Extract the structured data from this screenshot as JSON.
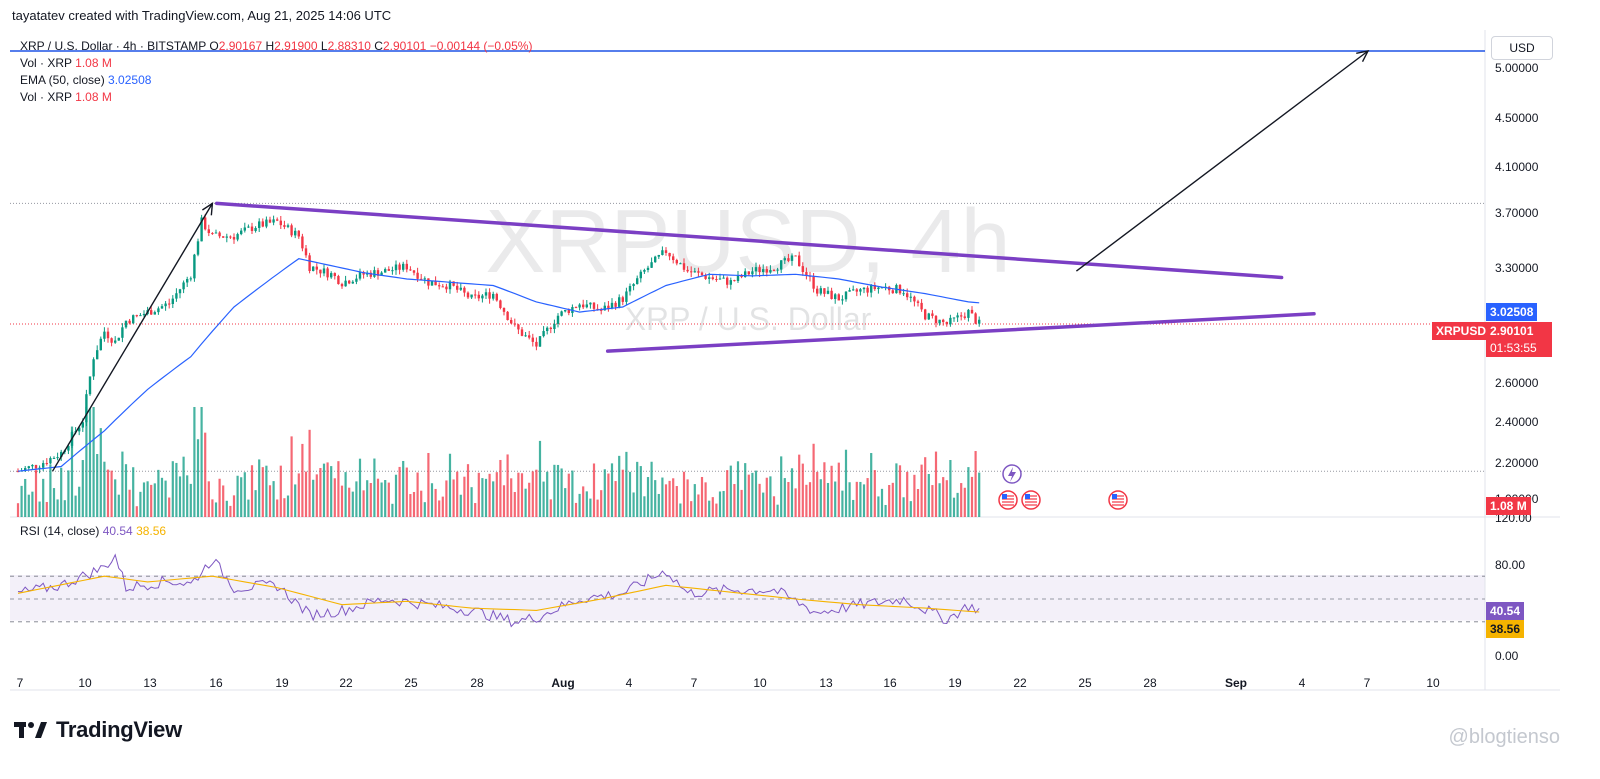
{
  "header": {
    "attribution": "tayatatev created with TradingView.com, Aug 21, 2025 14:06 UTC"
  },
  "legend": {
    "symbol": "XRP / U.S. Dollar · 4h · BITSTAMP",
    "o_label": "O",
    "o_value": "2.90167",
    "h_label": "H",
    "h_value": "2.91900",
    "l_label": "L",
    "l_value": "2.88310",
    "c_label": "C",
    "c_value": "2.90101",
    "change": "−0.00144 (−0.05%)",
    "vol1_label": "Vol · XRP",
    "vol1_value": "1.08 M",
    "ema_label": "EMA (50, close)",
    "ema_value": "3.02508",
    "vol2_label": "Vol · XRP",
    "vol2_value": "1.08 M",
    "rsi_label": "RSI (14, close)",
    "rsi_value": "40.54",
    "rsi_ma_value": "38.56"
  },
  "currency_button": "USD",
  "watermark": {
    "symbol": "XRPUSD, 4h",
    "name": "XRP / U.S. Dollar"
  },
  "price_tags": {
    "ema": "3.02508",
    "symbol": "XRPUSD",
    "last": "2.90101",
    "countdown": "01:53:55",
    "volume": "1.08 M",
    "rsi": "40.54",
    "rsi_ma": "38.56"
  },
  "footer": {
    "brand": "TradingView",
    "credit": "@blogtienso"
  },
  "colors": {
    "up": "#089981",
    "down": "#f23645",
    "ema": "#2962ff",
    "rsi": "#7e57c2",
    "rsi_ma": "#f5b300",
    "trendline": "#7b3fc4",
    "target": "#1e53e5"
  },
  "chart_data": {
    "type": "candlestick",
    "symbol": "XRPUSD",
    "timeframe": "4h",
    "exchange": "BITSTAMP",
    "x_ticks": [
      "7",
      "10",
      "13",
      "16",
      "19",
      "22",
      "25",
      "28",
      "Aug",
      "4",
      "7",
      "10",
      "13",
      "16",
      "19",
      "22",
      "25",
      "28",
      "Sep",
      "4",
      "7",
      "10"
    ],
    "price_axis": {
      "scale": "log",
      "ticks": [
        "5.00000",
        "4.50000",
        "4.10000",
        "3.70000",
        "3.30000",
        "2.60000",
        "2.40000",
        "2.20000",
        "1.00000"
      ]
    },
    "rsi_axis": {
      "ticks": [
        "120.00",
        "80.00",
        "0.00"
      ],
      "bands": [
        70,
        50,
        30
      ]
    },
    "last_close": 2.90101,
    "ema50_last": 3.02508,
    "target_price": 5.3,
    "close_path": [
      {
        "d": 0.0,
        "c": 2.17
      },
      {
        "d": 1.0,
        "c": 2.2
      },
      {
        "d": 2.0,
        "c": 2.25
      },
      {
        "d": 3.0,
        "c": 2.4
      },
      {
        "d": 3.5,
        "c": 2.72
      },
      {
        "d": 4.0,
        "c": 2.86
      },
      {
        "d": 4.5,
        "c": 2.8
      },
      {
        "d": 5.0,
        "c": 2.92
      },
      {
        "d": 6.0,
        "c": 2.97
      },
      {
        "d": 7.0,
        "c": 3.02
      },
      {
        "d": 8.0,
        "c": 3.2
      },
      {
        "d": 8.5,
        "c": 3.55
      },
      {
        "d": 9.0,
        "c": 3.45
      },
      {
        "d": 10.0,
        "c": 3.45
      },
      {
        "d": 11.0,
        "c": 3.52
      },
      {
        "d": 12.0,
        "c": 3.55
      },
      {
        "d": 13.0,
        "c": 3.45
      },
      {
        "d": 13.5,
        "c": 3.25
      },
      {
        "d": 14.5,
        "c": 3.2
      },
      {
        "d": 15.0,
        "c": 3.15
      },
      {
        "d": 16.0,
        "c": 3.2
      },
      {
        "d": 17.0,
        "c": 3.22
      },
      {
        "d": 18.0,
        "c": 3.25
      },
      {
        "d": 19.0,
        "c": 3.15
      },
      {
        "d": 20.0,
        "c": 3.13
      },
      {
        "d": 21.0,
        "c": 3.05
      },
      {
        "d": 22.0,
        "c": 3.08
      },
      {
        "d": 23.0,
        "c": 2.88
      },
      {
        "d": 24.0,
        "c": 2.78
      },
      {
        "d": 25.0,
        "c": 2.95
      },
      {
        "d": 26.0,
        "c": 3.02
      },
      {
        "d": 27.0,
        "c": 2.98
      },
      {
        "d": 28.0,
        "c": 3.05
      },
      {
        "d": 29.0,
        "c": 3.22
      },
      {
        "d": 30.0,
        "c": 3.35
      },
      {
        "d": 31.0,
        "c": 3.22
      },
      {
        "d": 32.0,
        "c": 3.18
      },
      {
        "d": 33.0,
        "c": 3.15
      },
      {
        "d": 34.0,
        "c": 3.22
      },
      {
        "d": 35.0,
        "c": 3.25
      },
      {
        "d": 36.0,
        "c": 3.3
      },
      {
        "d": 37.0,
        "c": 3.1
      },
      {
        "d": 38.0,
        "c": 3.05
      },
      {
        "d": 39.0,
        "c": 3.1
      },
      {
        "d": 40.0,
        "c": 3.12
      },
      {
        "d": 41.0,
        "c": 3.1
      },
      {
        "d": 42.0,
        "c": 2.95
      },
      {
        "d": 43.0,
        "c": 2.9
      },
      {
        "d": 44.0,
        "c": 2.97
      },
      {
        "d": 44.5,
        "c": 2.9
      }
    ],
    "ema_path": [
      {
        "d": 0.0,
        "v": 2.17
      },
      {
        "d": 2.0,
        "v": 2.19
      },
      {
        "d": 4.0,
        "v": 2.35
      },
      {
        "d": 6.0,
        "v": 2.55
      },
      {
        "d": 8.0,
        "v": 2.72
      },
      {
        "d": 10.0,
        "v": 3.0
      },
      {
        "d": 12.0,
        "v": 3.2
      },
      {
        "d": 13.0,
        "v": 3.3
      },
      {
        "d": 14.0,
        "v": 3.27
      },
      {
        "d": 16.0,
        "v": 3.21
      },
      {
        "d": 18.0,
        "v": 3.17
      },
      {
        "d": 20.0,
        "v": 3.15
      },
      {
        "d": 22.0,
        "v": 3.13
      },
      {
        "d": 24.0,
        "v": 3.03
      },
      {
        "d": 26.0,
        "v": 2.97
      },
      {
        "d": 28.0,
        "v": 3.0
      },
      {
        "d": 30.0,
        "v": 3.13
      },
      {
        "d": 32.0,
        "v": 3.2
      },
      {
        "d": 34.0,
        "v": 3.19
      },
      {
        "d": 36.0,
        "v": 3.2
      },
      {
        "d": 38.0,
        "v": 3.17
      },
      {
        "d": 40.0,
        "v": 3.12
      },
      {
        "d": 42.0,
        "v": 3.08
      },
      {
        "d": 44.0,
        "v": 3.03
      },
      {
        "d": 44.5,
        "v": 3.02508
      }
    ],
    "rsi_path": [
      {
        "d": 0.0,
        "v": 55
      },
      {
        "d": 2.0,
        "v": 62
      },
      {
        "d": 4.0,
        "v": 78
      },
      {
        "d": 4.5,
        "v": 88
      },
      {
        "d": 5.0,
        "v": 60
      },
      {
        "d": 7.0,
        "v": 66
      },
      {
        "d": 8.0,
        "v": 63
      },
      {
        "d": 9.0,
        "v": 85
      },
      {
        "d": 10.0,
        "v": 60
      },
      {
        "d": 12.0,
        "v": 62
      },
      {
        "d": 13.5,
        "v": 36
      },
      {
        "d": 15.0,
        "v": 40
      },
      {
        "d": 17.0,
        "v": 50
      },
      {
        "d": 19.0,
        "v": 45
      },
      {
        "d": 21.0,
        "v": 40
      },
      {
        "d": 23.0,
        "v": 30
      },
      {
        "d": 24.0,
        "v": 34
      },
      {
        "d": 26.0,
        "v": 50
      },
      {
        "d": 28.0,
        "v": 55
      },
      {
        "d": 30.0,
        "v": 75
      },
      {
        "d": 31.0,
        "v": 55
      },
      {
        "d": 33.0,
        "v": 58
      },
      {
        "d": 35.0,
        "v": 58
      },
      {
        "d": 37.0,
        "v": 38
      },
      {
        "d": 39.0,
        "v": 45
      },
      {
        "d": 41.0,
        "v": 50
      },
      {
        "d": 43.0,
        "v": 32
      },
      {
        "d": 44.0,
        "v": 44
      },
      {
        "d": 44.5,
        "v": 40.54
      }
    ],
    "rsi_ma_path": [
      {
        "d": 0.0,
        "v": 55
      },
      {
        "d": 4.0,
        "v": 70
      },
      {
        "d": 6.0,
        "v": 65
      },
      {
        "d": 9.0,
        "v": 70
      },
      {
        "d": 12.0,
        "v": 60
      },
      {
        "d": 15.0,
        "v": 45
      },
      {
        "d": 18.0,
        "v": 48
      },
      {
        "d": 21.0,
        "v": 42
      },
      {
        "d": 24.0,
        "v": 40
      },
      {
        "d": 27.0,
        "v": 50
      },
      {
        "d": 30.0,
        "v": 62
      },
      {
        "d": 33.0,
        "v": 56
      },
      {
        "d": 36.0,
        "v": 50
      },
      {
        "d": 39.0,
        "v": 45
      },
      {
        "d": 42.0,
        "v": 42
      },
      {
        "d": 44.5,
        "v": 38.56
      }
    ],
    "trendlines": [
      {
        "name": "upper",
        "from": {
          "d": 9.2,
          "price": 3.68
        },
        "to": {
          "d": 58.5,
          "price": 3.18
        }
      },
      {
        "name": "lower",
        "from": {
          "d": 27.3,
          "price": 2.75
        },
        "to": {
          "d": 60.0,
          "price": 2.96
        }
      }
    ],
    "arrows": [
      {
        "from": {
          "d": 1.6,
          "price": 2.17
        },
        "to": {
          "d": 9.0,
          "price": 3.68
        }
      },
      {
        "from": {
          "d": 49.0,
          "price": 3.22
        },
        "to": {
          "d": 62.5,
          "price": 5.3
        }
      }
    ]
  }
}
